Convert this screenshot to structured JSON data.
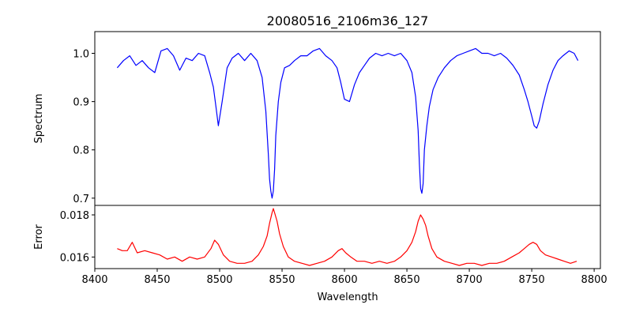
{
  "chart_data": {
    "type": "line",
    "title": "20080516_2106m36_127",
    "xlabel": "Wavelength",
    "xlim": [
      8400,
      8805
    ],
    "xticks": [
      8400,
      8450,
      8500,
      8550,
      8600,
      8650,
      8700,
      8750,
      8800
    ],
    "grid": false,
    "legend": "none",
    "panels": [
      {
        "ylabel": "Spectrum",
        "ylim": [
          0.685,
          1.045
        ],
        "yticks": [
          0.7,
          0.8,
          0.9,
          1.0
        ],
        "yticklabels": [
          "0.7",
          "0.8",
          "0.9",
          "1.0"
        ],
        "color": "#0000ff",
        "series": [
          {
            "x": [
              8418,
              8423,
              8428,
              8433,
              8438,
              8443,
              8448,
              8453,
              8458,
              8463,
              8468,
              8473,
              8478,
              8483,
              8488,
              8492,
              8495,
              8497,
              8499,
              8502,
              8506,
              8510,
              8515,
              8520,
              8525,
              8530,
              8534,
              8537,
              8539,
              8540,
              8541,
              8542,
              8543,
              8544,
              8545,
              8547,
              8549,
              8552,
              8556,
              8560,
              8565,
              8570,
              8575,
              8580,
              8585,
              8590,
              8594,
              8597,
              8600,
              8604,
              8608,
              8612,
              8616,
              8620,
              8625,
              8630,
              8635,
              8640,
              8645,
              8650,
              8654,
              8657,
              8659,
              8660,
              8661,
              8662,
              8663,
              8664,
              8666,
              8668,
              8671,
              8675,
              8680,
              8685,
              8690,
              8695,
              8700,
              8705,
              8710,
              8715,
              8720,
              8725,
              8730,
              8735,
              8740,
              8744,
              8747,
              8750,
              8752,
              8754,
              8756,
              8759,
              8763,
              8767,
              8771,
              8775,
              8780,
              8784,
              8787
            ],
            "y": [
              0.97,
              0.985,
              0.995,
              0.975,
              0.985,
              0.97,
              0.96,
              1.005,
              1.01,
              0.995,
              0.965,
              0.99,
              0.985,
              1.0,
              0.995,
              0.96,
              0.93,
              0.89,
              0.85,
              0.9,
              0.97,
              0.99,
              1.0,
              0.985,
              1.0,
              0.985,
              0.95,
              0.88,
              0.79,
              0.74,
              0.715,
              0.7,
              0.715,
              0.76,
              0.83,
              0.9,
              0.94,
              0.97,
              0.975,
              0.985,
              0.995,
              0.995,
              1.005,
              1.01,
              0.995,
              0.985,
              0.97,
              0.94,
              0.905,
              0.9,
              0.935,
              0.96,
              0.975,
              0.99,
              1.0,
              0.995,
              1.0,
              0.995,
              1.0,
              0.985,
              0.96,
              0.91,
              0.84,
              0.77,
              0.72,
              0.71,
              0.73,
              0.8,
              0.85,
              0.89,
              0.925,
              0.95,
              0.97,
              0.985,
              0.995,
              1.0,
              1.005,
              1.01,
              1.0,
              1.0,
              0.995,
              1.0,
              0.99,
              0.975,
              0.955,
              0.925,
              0.9,
              0.87,
              0.85,
              0.845,
              0.86,
              0.895,
              0.935,
              0.965,
              0.985,
              0.995,
              1.005,
              1.0,
              0.985
            ]
          }
        ]
      },
      {
        "ylabel": "Error",
        "ylim": [
          0.01545,
          0.01845
        ],
        "yticks": [
          0.016,
          0.018
        ],
        "yticklabels": [
          "0.016",
          "0.018"
        ],
        "color": "#ff0000",
        "series": [
          {
            "x": [
              8418,
              8422,
              8426,
              8430,
              8434,
              8440,
              8446,
              8452,
              8458,
              8464,
              8470,
              8476,
              8482,
              8488,
              8493,
              8496,
              8499,
              8503,
              8508,
              8514,
              8520,
              8526,
              8531,
              8535,
              8538,
              8540,
              8542,
              8543,
              8544,
              8546,
              8548,
              8551,
              8555,
              8560,
              8566,
              8572,
              8578,
              8584,
              8590,
              8595,
              8598,
              8601,
              8605,
              8610,
              8616,
              8622,
              8628,
              8634,
              8640,
              8645,
              8650,
              8654,
              8657,
              8659,
              8661,
              8662,
              8663,
              8665,
              8667,
              8670,
              8674,
              8680,
              8686,
              8692,
              8698,
              8704,
              8710,
              8716,
              8722,
              8728,
              8734,
              8740,
              8744,
              8748,
              8751,
              8754,
              8757,
              8761,
              8766,
              8771,
              8776,
              8781,
              8786
            ],
            "y": [
              0.0164,
              0.0163,
              0.0163,
              0.0167,
              0.0162,
              0.0163,
              0.0162,
              0.0161,
              0.0159,
              0.016,
              0.0158,
              0.016,
              0.0159,
              0.016,
              0.0164,
              0.0168,
              0.0166,
              0.0161,
              0.0158,
              0.0157,
              0.0157,
              0.0158,
              0.0161,
              0.0165,
              0.017,
              0.0176,
              0.0181,
              0.0183,
              0.0181,
              0.0177,
              0.0171,
              0.0165,
              0.016,
              0.0158,
              0.0157,
              0.0156,
              0.0157,
              0.0158,
              0.016,
              0.0163,
              0.0164,
              0.0162,
              0.016,
              0.0158,
              0.0158,
              0.0157,
              0.0158,
              0.0157,
              0.0158,
              0.016,
              0.0163,
              0.0167,
              0.0172,
              0.0177,
              0.018,
              0.0179,
              0.0178,
              0.0175,
              0.017,
              0.0164,
              0.016,
              0.0158,
              0.0157,
              0.0156,
              0.0157,
              0.0157,
              0.0156,
              0.0157,
              0.0157,
              0.0158,
              0.016,
              0.0162,
              0.0164,
              0.0166,
              0.0167,
              0.0166,
              0.0163,
              0.0161,
              0.016,
              0.0159,
              0.0158,
              0.0157,
              0.0158
            ]
          }
        ]
      }
    ]
  }
}
